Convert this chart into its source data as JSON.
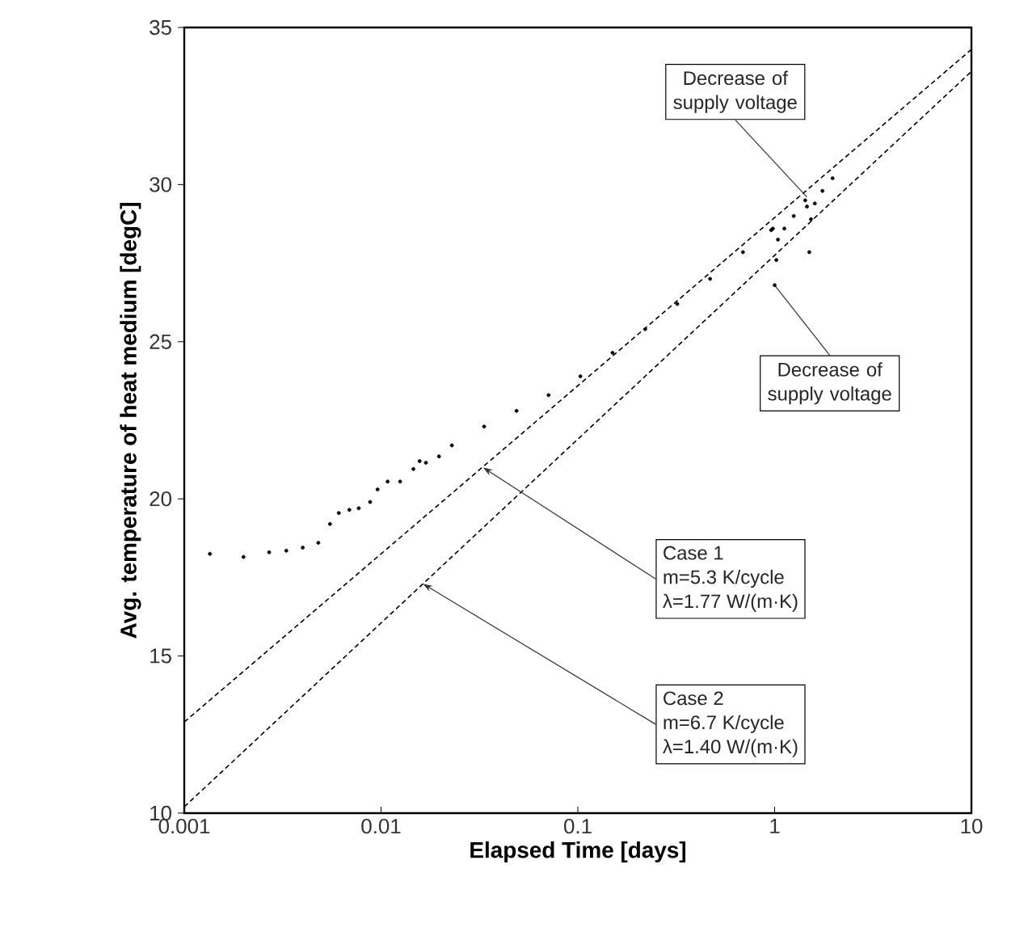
{
  "chart_data": {
    "type": "scatter",
    "xlabel": "Elapsed Time [days]",
    "ylabel": "Avg. temperature of heat medium [degC]",
    "log": "x",
    "grid": false,
    "xlim": [
      0.001,
      10
    ],
    "xticks": [
      0.001,
      0.01,
      0.1,
      1,
      10
    ],
    "ylim": [
      10,
      35
    ],
    "yticks": [
      10,
      15,
      20,
      25,
      30,
      35
    ],
    "series": [
      {
        "color": "#000000",
        "marker": "circle",
        "x": [
          0.00135,
          0.002,
          0.0027,
          0.0033,
          0.004,
          0.0048,
          0.0055,
          0.0061,
          0.0069,
          0.0077,
          0.0088,
          0.0096,
          0.0108,
          0.0125,
          0.0146,
          0.0157,
          0.0169,
          0.0197,
          0.0229,
          0.0334,
          0.0488,
          0.071,
          0.103,
          0.15,
          0.22,
          0.32,
          0.47,
          0.69,
          0.96,
          0.98,
          1.0,
          1.02,
          1.04,
          1.12,
          1.25,
          1.43,
          1.46,
          1.5,
          1.53,
          1.6,
          1.75,
          1.97
        ],
        "values": [
          18.25,
          18.15,
          18.3,
          18.35,
          18.45,
          18.6,
          19.2,
          19.55,
          19.65,
          19.7,
          19.9,
          20.3,
          20.55,
          20.55,
          20.95,
          21.2,
          21.15,
          21.35,
          21.7,
          22.3,
          22.8,
          23.3,
          23.9,
          24.65,
          25.4,
          26.2,
          27.0,
          27.85,
          28.55,
          28.6,
          26.8,
          27.6,
          28.25,
          28.6,
          29.0,
          29.5,
          29.3,
          27.85,
          28.9,
          29.4,
          29.8,
          30.2
        ]
      },
      {
        "type": "line",
        "color": "#000000",
        "line_style": "dashed",
        "marker": "none",
        "x": [
          0.001,
          10
        ],
        "values": [
          12.9,
          34.3
        ]
      },
      {
        "type": "line",
        "color": "#000000",
        "line_style": "dashed",
        "marker": "none",
        "x": [
          0.001,
          10
        ],
        "values": [
          10.2,
          33.6
        ]
      }
    ],
    "annotations": [
      {
        "text": "Decrease of supply voltage",
        "x": 1.46,
        "y": 29.6
      },
      {
        "text": "Decrease of supply voltage",
        "x": 1.0,
        "y": 26.8
      },
      {
        "text": "Case 1",
        "x": 0.033,
        "y": 21.0
      },
      "m=5.3 K/cycle",
      "λ=1.77 W/(m·K)",
      {
        "text": "Case 2",
        "x": 0.0163,
        "y": 17.3
      },
      "m=6.7 K/cycle",
      "λ=1.40 W/(m·K)"
    ]
  }
}
